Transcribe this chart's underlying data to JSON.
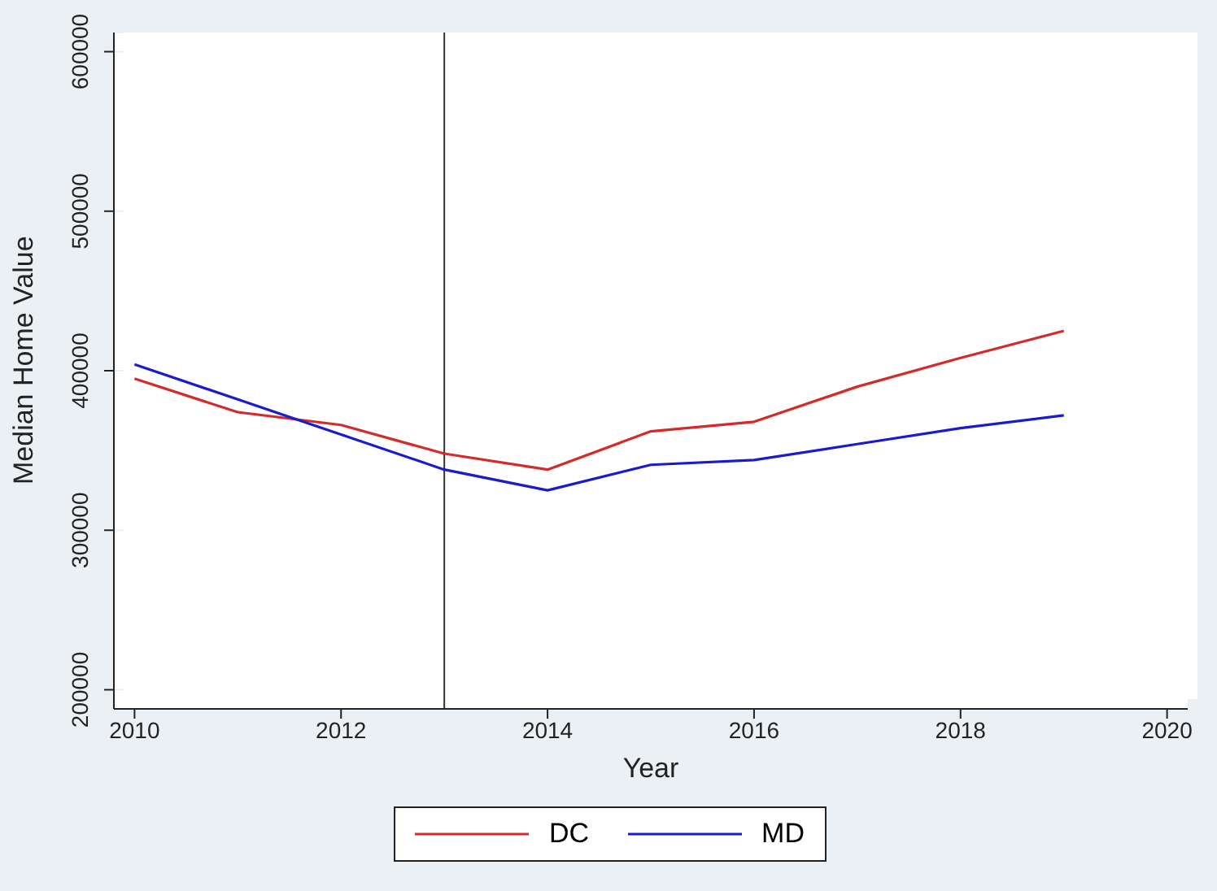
{
  "chart_data": {
    "type": "line",
    "xlabel": "Year",
    "ylabel": "Median Home Value",
    "x": [
      2010,
      2011,
      2012,
      2013,
      2014,
      2015,
      2016,
      2017,
      2018,
      2019
    ],
    "series": [
      {
        "name": "DC",
        "color": "#d42a2a",
        "values": [
          395000,
          374000,
          366000,
          348000,
          338000,
          362000,
          368000,
          390000,
          408000,
          425000
        ]
      },
      {
        "name": "MD",
        "color": "#1a1ad0",
        "values": [
          404000,
          382000,
          360000,
          338000,
          325000,
          341000,
          344000,
          354000,
          364000,
          372000
        ]
      }
    ],
    "xlim": [
      2009.8,
      2020.2
    ],
    "xticks": [
      2010,
      2012,
      2014,
      2016,
      2018,
      2020
    ],
    "ylim": [
      188000,
      612000
    ],
    "yticks": [
      200000,
      300000,
      400000,
      500000,
      600000
    ],
    "ref_lines": [
      {
        "axis": "x",
        "value": 2013,
        "color": "#333333"
      }
    ],
    "grid": "y",
    "legend": "bottom",
    "marker": "none",
    "line_style": "solid"
  }
}
